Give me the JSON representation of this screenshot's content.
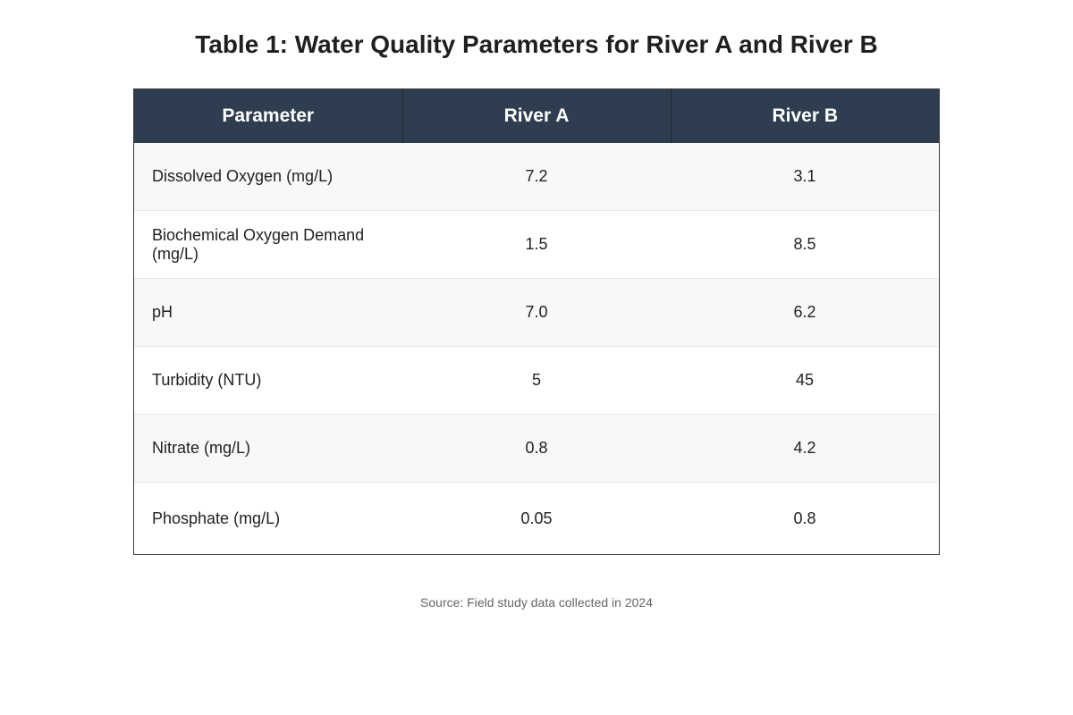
{
  "chart_data": {
    "type": "table",
    "title": "Table 1: Water Quality Parameters for River A and River B",
    "columns": [
      "Parameter",
      "River A",
      "River B"
    ],
    "rows": [
      [
        "Dissolved Oxygen (mg/L)",
        "7.2",
        "3.1"
      ],
      [
        "Biochemical Oxygen Demand (mg/L)",
        "1.5",
        "8.5"
      ],
      [
        "pH",
        "7.0",
        "6.2"
      ],
      [
        "Turbidity (NTU)",
        "5",
        "45"
      ],
      [
        "Nitrate (mg/L)",
        "0.8",
        "4.2"
      ],
      [
        "Phosphate (mg/L)",
        "0.05",
        "0.8"
      ]
    ],
    "source": "Source: Field study data collected in 2024"
  },
  "colors": {
    "header_bg": "#2e3e50",
    "header_text": "#ffffff",
    "row_alt_bg": "#f7f8fa",
    "row_bg": "#ffffff",
    "border": "#3a3a3a"
  }
}
